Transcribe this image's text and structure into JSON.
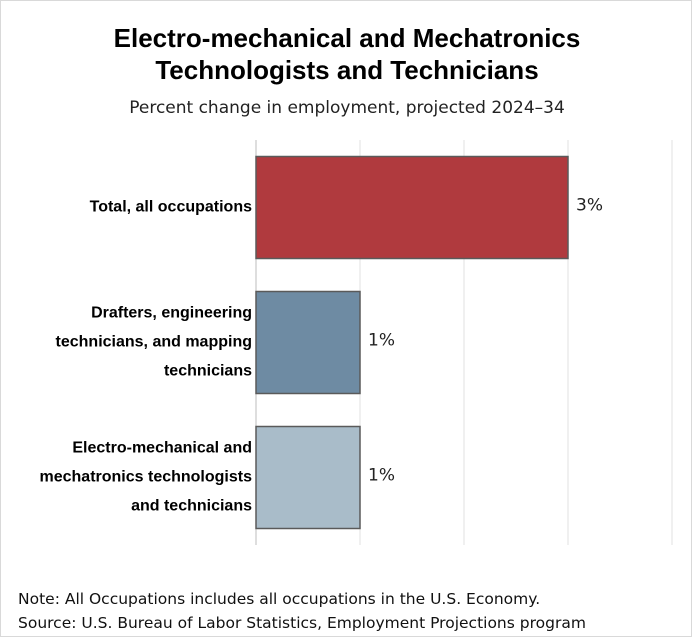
{
  "chart_data": {
    "type": "bar",
    "orientation": "horizontal",
    "title_line1": "Electro-mechanical and Mechatronics",
    "title_line2": "Technologists and Technicians",
    "subtitle": "Percent change in employment, projected 2024–34",
    "categories": [
      [
        "Total, all occupations"
      ],
      [
        "Drafters, engineering",
        "technicians, and mapping",
        "technicians"
      ],
      [
        "Electro-mechanical and",
        "mechatronics technologists",
        "and technicians"
      ]
    ],
    "values": [
      3,
      1,
      1
    ],
    "value_labels": [
      "3%",
      "1%",
      "1%"
    ],
    "colors": [
      "#b03a3e",
      "#6e8ba3",
      "#a9bcc9"
    ],
    "xlim": [
      0,
      4
    ],
    "grid": true
  },
  "note": "Note: All Occupations includes all occupations in the U.S. Economy.",
  "source": "Source: U.S. Bureau of Labor Statistics, Employment Projections program"
}
